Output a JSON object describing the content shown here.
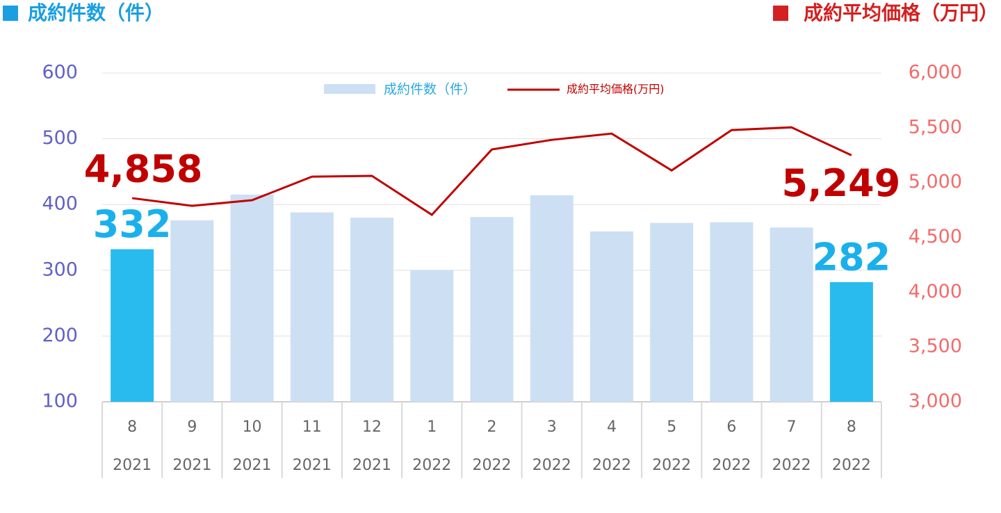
{
  "chart_data": {
    "type": "bar_line",
    "y_label": "成約件数（件）",
    "y2_label": "成約平均価格（万円）",
    "categories": [
      "8",
      "9",
      "10",
      "11",
      "12",
      "1",
      "2",
      "3",
      "4",
      "5",
      "6",
      "7",
      "8"
    ],
    "category_years": [
      "2021",
      "2021",
      "2021",
      "2021",
      "2021",
      "2022",
      "2022",
      "2022",
      "2022",
      "2022",
      "2022",
      "2022",
      "2022"
    ],
    "series": [
      {
        "name": "成約件数（件）",
        "type": "bar",
        "color": "#cddff3",
        "colors": [
          "#29bbee",
          "#cddff3",
          "#cddff3",
          "#cddff3",
          "#cddff3",
          "#cddff3",
          "#cddff3",
          "#cddff3",
          "#cddff3",
          "#cddff3",
          "#cddff3",
          "#cddff3",
          "#29bbee"
        ],
        "values": [
          332,
          376,
          415,
          388,
          380,
          300,
          381,
          414,
          359,
          372,
          373,
          365,
          282
        ],
        "value_labels": [
          "332",
          null,
          null,
          null,
          null,
          null,
          null,
          null,
          null,
          null,
          null,
          null,
          "282"
        ]
      },
      {
        "name": "成約平均価格(万円)",
        "type": "line",
        "axis": "y2",
        "color": "#c00000",
        "values": [
          4858,
          4788,
          4839,
          5054,
          5061,
          4706,
          5302,
          5390,
          5447,
          5111,
          5479,
          5504,
          5249
        ],
        "value_labels": [
          "4,858",
          null,
          null,
          null,
          null,
          null,
          null,
          null,
          null,
          null,
          null,
          null,
          "5,249"
        ]
      }
    ],
    "ylim": [
      100,
      600
    ],
    "yticks": [
      100,
      200,
      300,
      400,
      500,
      600
    ],
    "y2lim": [
      3000,
      6000
    ],
    "y2ticks": [
      {
        "value": 3000,
        "label": "3,000"
      },
      {
        "value": 3500,
        "label": "3,500"
      },
      {
        "value": 4000,
        "label": "4,000"
      },
      {
        "value": 4500,
        "label": "4,500"
      },
      {
        "value": 5000,
        "label": "5,000"
      },
      {
        "value": 5500,
        "label": "5,500"
      },
      {
        "value": 6000,
        "label": "6,000"
      }
    ],
    "grid": true,
    "legend": "top"
  }
}
